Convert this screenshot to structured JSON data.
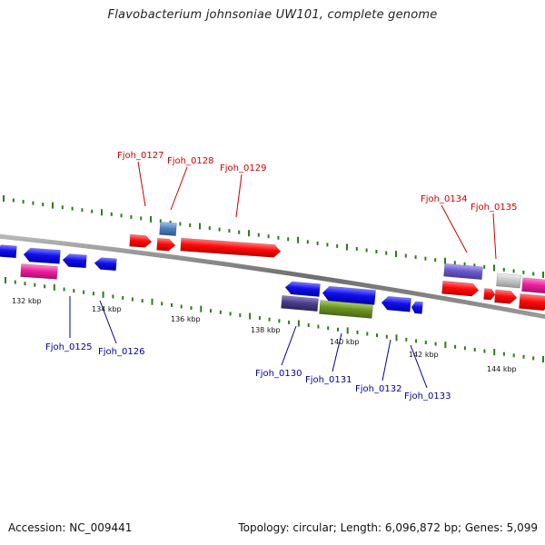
{
  "title": "Flavobacterium johnsoniae UW101, complete genome",
  "accession_label": "Accession: NC_009441",
  "summary_label": "Topology: circular; Length: 6,096,872 bp; Genes: 5,099",
  "colors": {
    "red": "#ff0a0a",
    "blue": "#1010ee",
    "magenta": "#ee1f9e",
    "steelblue": "#4f84c0",
    "slateblue": "#6a5acd",
    "darkslate": "#4a3f8a",
    "olive": "#6b9322",
    "silver": "#c8c8c8",
    "tick": "#2e7d1a",
    "backbone": "#7a7a7a",
    "label_top": "#cc0000",
    "label_bottom": "#000099"
  },
  "scale_labels": [
    "132 kbp",
    "134 kbp",
    "136 kbp",
    "138 kbp",
    "140 kbp",
    "142 kbp",
    "144 kbp"
  ],
  "genes_top": [
    "Fjoh_0127",
    "Fjoh_0128",
    "Fjoh_0129",
    "Fjoh_0134",
    "Fjoh_0135"
  ],
  "genes_bottom": [
    "Fjoh_0125",
    "Fjoh_0126",
    "Fjoh_0130",
    "Fjoh_0131",
    "Fjoh_0132",
    "Fjoh_0133"
  ]
}
